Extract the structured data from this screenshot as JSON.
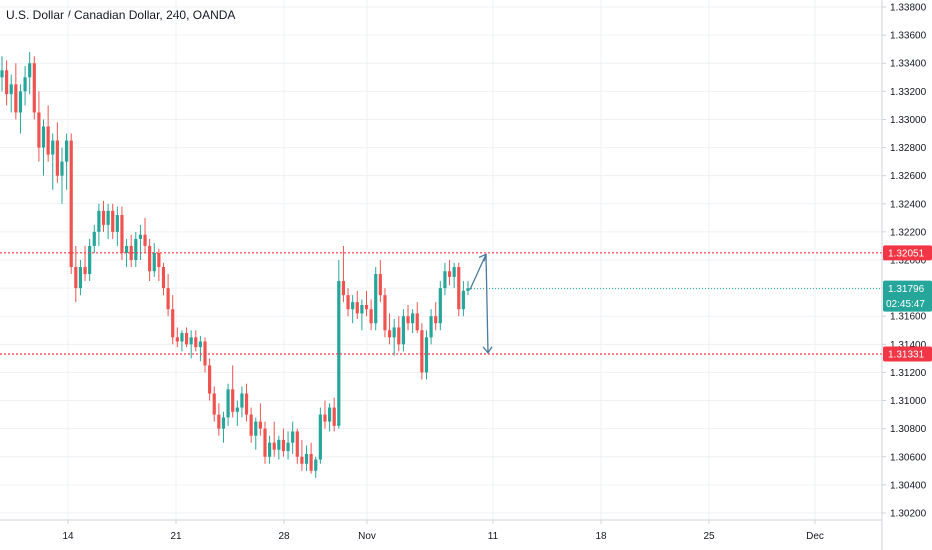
{
  "header": {
    "title": "U.S. Dollar / Canadian Dollar, 240, OANDA"
  },
  "colors": {
    "up": "#26a69a",
    "down": "#ef5350",
    "level": "#f23645",
    "arrow": "#4a7a9c",
    "grid": "#eef0f3",
    "axis": "#cfd3da",
    "current": "#26a69a"
  },
  "price_scale": {
    "ticks": [
      "1.33800",
      "1.33600",
      "1.33400",
      "1.33200",
      "1.33000",
      "1.32800",
      "1.32600",
      "1.32400",
      "1.32200",
      "1.32000",
      "1.31800",
      "1.31600",
      "1.31400",
      "1.31200",
      "1.31000",
      "1.30800",
      "1.30600",
      "1.30400",
      "1.30200"
    ]
  },
  "time_scale": {
    "ticks": [
      "14",
      "21",
      "28",
      "Nov",
      "11",
      "18",
      "25",
      "Dec"
    ]
  },
  "markers": {
    "upper_level": "1.32051",
    "last_price": "1.31796",
    "countdown": "02:45:47",
    "lower_level": "1.31331"
  },
  "chart_data": {
    "type": "candlestick",
    "symbol": "U.S. Dollar / Canadian Dollar",
    "timeframe": "240",
    "source": "OANDA",
    "y_range": [
      1.3015,
      1.3385
    ],
    "x_ticks": [
      "14",
      "21",
      "28",
      "Nov",
      "11",
      "18",
      "25",
      "Dec"
    ],
    "horizontal_levels": [
      1.32051,
      1.31331
    ],
    "last_price": 1.31796,
    "projection_arrows": [
      {
        "from": [
          1.3179,
          "last bar"
        ],
        "to": [
          1.3204,
          "~Nov 10"
        ]
      },
      {
        "from": [
          1.3204,
          "~Nov 10"
        ],
        "to": [
          1.3134,
          "~Nov 10"
        ]
      }
    ],
    "candles": [
      [
        1.333,
        1.3345,
        1.332,
        1.3335
      ],
      [
        1.3335,
        1.3342,
        1.331,
        1.3318
      ],
      [
        1.3318,
        1.3332,
        1.3305,
        1.3325
      ],
      [
        1.3325,
        1.334,
        1.33,
        1.3305
      ],
      [
        1.3305,
        1.3325,
        1.329,
        1.332
      ],
      [
        1.332,
        1.3338,
        1.331,
        1.333
      ],
      [
        1.333,
        1.3348,
        1.3318,
        1.334
      ],
      [
        1.334,
        1.3345,
        1.33,
        1.3305
      ],
      [
        1.3305,
        1.332,
        1.327,
        1.328
      ],
      [
        1.328,
        1.33,
        1.326,
        1.3295
      ],
      [
        1.3295,
        1.331,
        1.327,
        1.3275
      ],
      [
        1.3275,
        1.329,
        1.325,
        1.3285
      ],
      [
        1.3285,
        1.3298,
        1.3255,
        1.326
      ],
      [
        1.326,
        1.328,
        1.324,
        1.327
      ],
      [
        1.327,
        1.329,
        1.325,
        1.3285
      ],
      [
        1.3285,
        1.329,
        1.319,
        1.3195
      ],
      [
        1.3195,
        1.321,
        1.317,
        1.318
      ],
      [
        1.318,
        1.32,
        1.3175,
        1.3195
      ],
      [
        1.3195,
        1.321,
        1.3185,
        1.319
      ],
      [
        1.319,
        1.3215,
        1.3185,
        1.321
      ],
      [
        1.321,
        1.3225,
        1.3205,
        1.322
      ],
      [
        1.322,
        1.324,
        1.321,
        1.3235
      ],
      [
        1.3235,
        1.3242,
        1.322,
        1.3225
      ],
      [
        1.3225,
        1.324,
        1.3215,
        1.3235
      ],
      [
        1.3235,
        1.324,
        1.3215,
        1.322
      ],
      [
        1.322,
        1.3238,
        1.321,
        1.3232
      ],
      [
        1.3232,
        1.3238,
        1.32,
        1.3205
      ],
      [
        1.3205,
        1.3215,
        1.3195,
        1.321
      ],
      [
        1.321,
        1.3218,
        1.3195,
        1.32
      ],
      [
        1.32,
        1.322,
        1.3195,
        1.3215
      ],
      [
        1.3215,
        1.3225,
        1.32,
        1.3218
      ],
      [
        1.3218,
        1.323,
        1.3205,
        1.321
      ],
      [
        1.321,
        1.3215,
        1.3185,
        1.3192
      ],
      [
        1.3192,
        1.3212,
        1.3188,
        1.3205
      ],
      [
        1.3205,
        1.3208,
        1.3185,
        1.3195
      ],
      [
        1.3195,
        1.3198,
        1.3175,
        1.318
      ],
      [
        1.318,
        1.319,
        1.316,
        1.3165
      ],
      [
        1.3165,
        1.3175,
        1.314,
        1.3145
      ],
      [
        1.3145,
        1.3152,
        1.3138,
        1.3142
      ],
      [
        1.3142,
        1.315,
        1.3135,
        1.3148
      ],
      [
        1.3148,
        1.3152,
        1.3138,
        1.314
      ],
      [
        1.314,
        1.315,
        1.313,
        1.3145
      ],
      [
        1.3145,
        1.315,
        1.3135,
        1.3138
      ],
      [
        1.3138,
        1.3146,
        1.3128,
        1.3142
      ],
      [
        1.3142,
        1.3145,
        1.312,
        1.3125
      ],
      [
        1.3125,
        1.313,
        1.31,
        1.3105
      ],
      [
        1.3105,
        1.311,
        1.3085,
        1.309
      ],
      [
        1.309,
        1.3098,
        1.3075,
        1.308
      ],
      [
        1.308,
        1.3092,
        1.307,
        1.3088
      ],
      [
        1.3088,
        1.3112,
        1.3082,
        1.3108
      ],
      [
        1.3108,
        1.3125,
        1.3088,
        1.3092
      ],
      [
        1.3092,
        1.31,
        1.3082,
        1.3095
      ],
      [
        1.3095,
        1.311,
        1.3088,
        1.3105
      ],
      [
        1.3105,
        1.3112,
        1.3085,
        1.309
      ],
      [
        1.309,
        1.3095,
        1.307,
        1.3075
      ],
      [
        1.3075,
        1.3088,
        1.3065,
        1.3085
      ],
      [
        1.3085,
        1.3098,
        1.3075,
        1.308
      ],
      [
        1.308,
        1.3085,
        1.3055,
        1.306
      ],
      [
        1.306,
        1.3075,
        1.3055,
        1.307
      ],
      [
        1.307,
        1.3085,
        1.306,
        1.3065
      ],
      [
        1.3065,
        1.3075,
        1.3058,
        1.3072
      ],
      [
        1.3072,
        1.308,
        1.306,
        1.3064
      ],
      [
        1.3064,
        1.3078,
        1.3058,
        1.307
      ],
      [
        1.307,
        1.3085,
        1.3062,
        1.3078
      ],
      [
        1.3078,
        1.308,
        1.3055,
        1.306
      ],
      [
        1.306,
        1.3072,
        1.305,
        1.3055
      ],
      [
        1.3055,
        1.3068,
        1.305,
        1.3062
      ],
      [
        1.3062,
        1.307,
        1.3048,
        1.305
      ],
      [
        1.305,
        1.306,
        1.3045,
        1.3058
      ],
      [
        1.3058,
        1.3095,
        1.3055,
        1.309
      ],
      [
        1.309,
        1.31,
        1.308,
        1.3085
      ],
      [
        1.3085,
        1.3098,
        1.3078,
        1.3095
      ],
      [
        1.3095,
        1.3102,
        1.3078,
        1.3082
      ],
      [
        1.3082,
        1.32,
        1.308,
        1.3185
      ],
      [
        1.3185,
        1.321,
        1.317,
        1.3175
      ],
      [
        1.3175,
        1.318,
        1.316,
        1.3165
      ],
      [
        1.3165,
        1.3175,
        1.3155,
        1.317
      ],
      [
        1.317,
        1.3178,
        1.3158,
        1.3162
      ],
      [
        1.3162,
        1.3172,
        1.315,
        1.3168
      ],
      [
        1.3168,
        1.3178,
        1.316,
        1.3165
      ],
      [
        1.3165,
        1.3172,
        1.315,
        1.3155
      ],
      [
        1.3155,
        1.3195,
        1.315,
        1.319
      ],
      [
        1.319,
        1.32,
        1.317,
        1.3175
      ],
      [
        1.3175,
        1.318,
        1.3145,
        1.315
      ],
      [
        1.315,
        1.3162,
        1.314,
        1.3145
      ],
      [
        1.3145,
        1.3158,
        1.3132,
        1.3152
      ],
      [
        1.3152,
        1.316,
        1.3135,
        1.314
      ],
      [
        1.314,
        1.3165,
        1.3135,
        1.316
      ],
      [
        1.316,
        1.3168,
        1.315,
        1.3155
      ],
      [
        1.3155,
        1.3165,
        1.3148,
        1.3162
      ],
      [
        1.3162,
        1.317,
        1.3148,
        1.315
      ],
      [
        1.315,
        1.3155,
        1.3115,
        1.312
      ],
      [
        1.312,
        1.315,
        1.3115,
        1.3145
      ],
      [
        1.3145,
        1.3165,
        1.314,
        1.316
      ],
      [
        1.316,
        1.317,
        1.315,
        1.3155
      ],
      [
        1.3155,
        1.3185,
        1.315,
        1.318
      ],
      [
        1.318,
        1.3198,
        1.3175,
        1.3192
      ],
      [
        1.3192,
        1.32,
        1.3182,
        1.3188
      ],
      [
        1.3188,
        1.3198,
        1.318,
        1.3195
      ],
      [
        1.3195,
        1.3198,
        1.316,
        1.3165
      ],
      [
        1.3165,
        1.3185,
        1.316,
        1.3178
      ],
      [
        1.3178,
        1.3185,
        1.3175,
        1.318
      ]
    ]
  }
}
